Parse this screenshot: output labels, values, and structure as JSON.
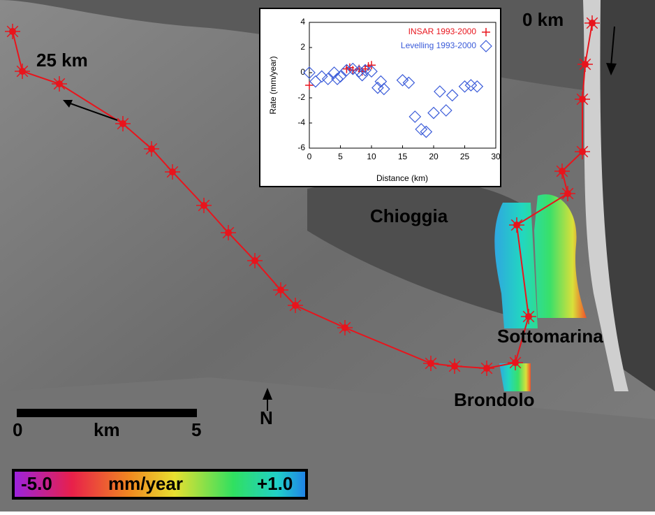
{
  "map": {
    "labels": {
      "start": "0 km",
      "end": "25 km",
      "chioggia": "Chioggia",
      "sottomarina": "Sottomarina",
      "brondolo": "Brondolo",
      "north": "N"
    },
    "scale_bar": {
      "left": "0",
      "unit": "km",
      "right": "5"
    },
    "color_bar": {
      "min": "-5.0",
      "unit": "mm/year",
      "max": "+1.0"
    }
  },
  "chart_data": {
    "type": "scatter",
    "x_label": "Distance (km)",
    "y_label": "Rate (mm/year)",
    "xlim": [
      0,
      30
    ],
    "xticks": [
      0,
      5,
      10,
      15,
      20,
      25,
      30
    ],
    "ylim": [
      -6,
      4
    ],
    "yticks": [
      -6,
      -4,
      -2,
      0,
      2,
      4
    ],
    "legend": "upper right",
    "series": [
      {
        "name": "INSAR 1993-2000",
        "color": "#e8141c",
        "marker": "plus",
        "x": [
          0,
          6,
          6.5,
          7,
          8,
          8.5,
          9,
          9.5,
          10
        ],
        "values": [
          -1,
          0.3,
          0.4,
          0.2,
          0.3,
          0.1,
          0.3,
          0.5,
          0.6
        ]
      },
      {
        "name": "Levelling 1993-2000",
        "color": "#3a5bd9",
        "marker": "diamond",
        "x": [
          0,
          1,
          2,
          3,
          4,
          4.5,
          5,
          6,
          7,
          8,
          8.5,
          9,
          10,
          11,
          11.5,
          12,
          15,
          16,
          17,
          18,
          18.8,
          20,
          21,
          22,
          23,
          25,
          26,
          27
        ],
        "values": [
          0,
          -0.7,
          -0.3,
          -0.5,
          0,
          -0.5,
          -0.3,
          0.2,
          0.3,
          0.1,
          -0.2,
          0.2,
          0.1,
          -1.2,
          -0.7,
          -1.3,
          -0.6,
          -0.8,
          -3.5,
          -4.5,
          -4.7,
          -3.2,
          -1.5,
          -3,
          -1.8,
          -1.1,
          -1,
          -1.1
        ]
      }
    ]
  }
}
